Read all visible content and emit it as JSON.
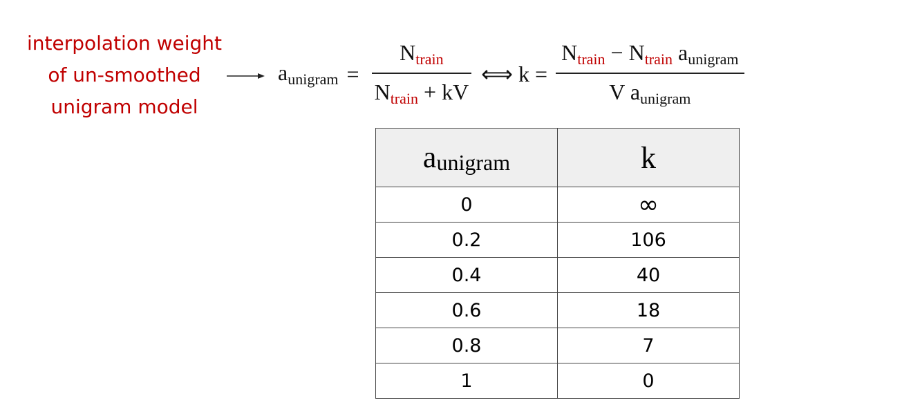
{
  "annotation": {
    "lines": [
      "interpolation weight",
      "of un-smoothed",
      "unigram model"
    ]
  },
  "formula": {
    "lhs": {
      "base": "a",
      "sub": "unigram"
    },
    "equals": "=",
    "fraction1": {
      "numerator": {
        "base": "N",
        "sub": "train"
      },
      "denominator": {
        "base": "N",
        "sub": "train",
        "rest": "+ kV"
      }
    },
    "iff": "⟺",
    "k_equals": "k =",
    "fraction2": {
      "numerator": {
        "base1": "N",
        "sub1": "train",
        "minus": "−",
        "base2": "N",
        "sub2": "train",
        "base3": "a",
        "sub3": "unigram"
      },
      "denominator": {
        "base1": "V",
        "base2": "a",
        "sub2": "unigram"
      }
    }
  },
  "table": {
    "header": [
      {
        "base": "a",
        "sub": "unigram"
      },
      "k"
    ],
    "rows": [
      [
        0,
        "∞"
      ],
      [
        0.2,
        106
      ],
      [
        0.4,
        40
      ],
      [
        0.6,
        18
      ],
      [
        0.8,
        7
      ],
      [
        1,
        0
      ]
    ]
  }
}
